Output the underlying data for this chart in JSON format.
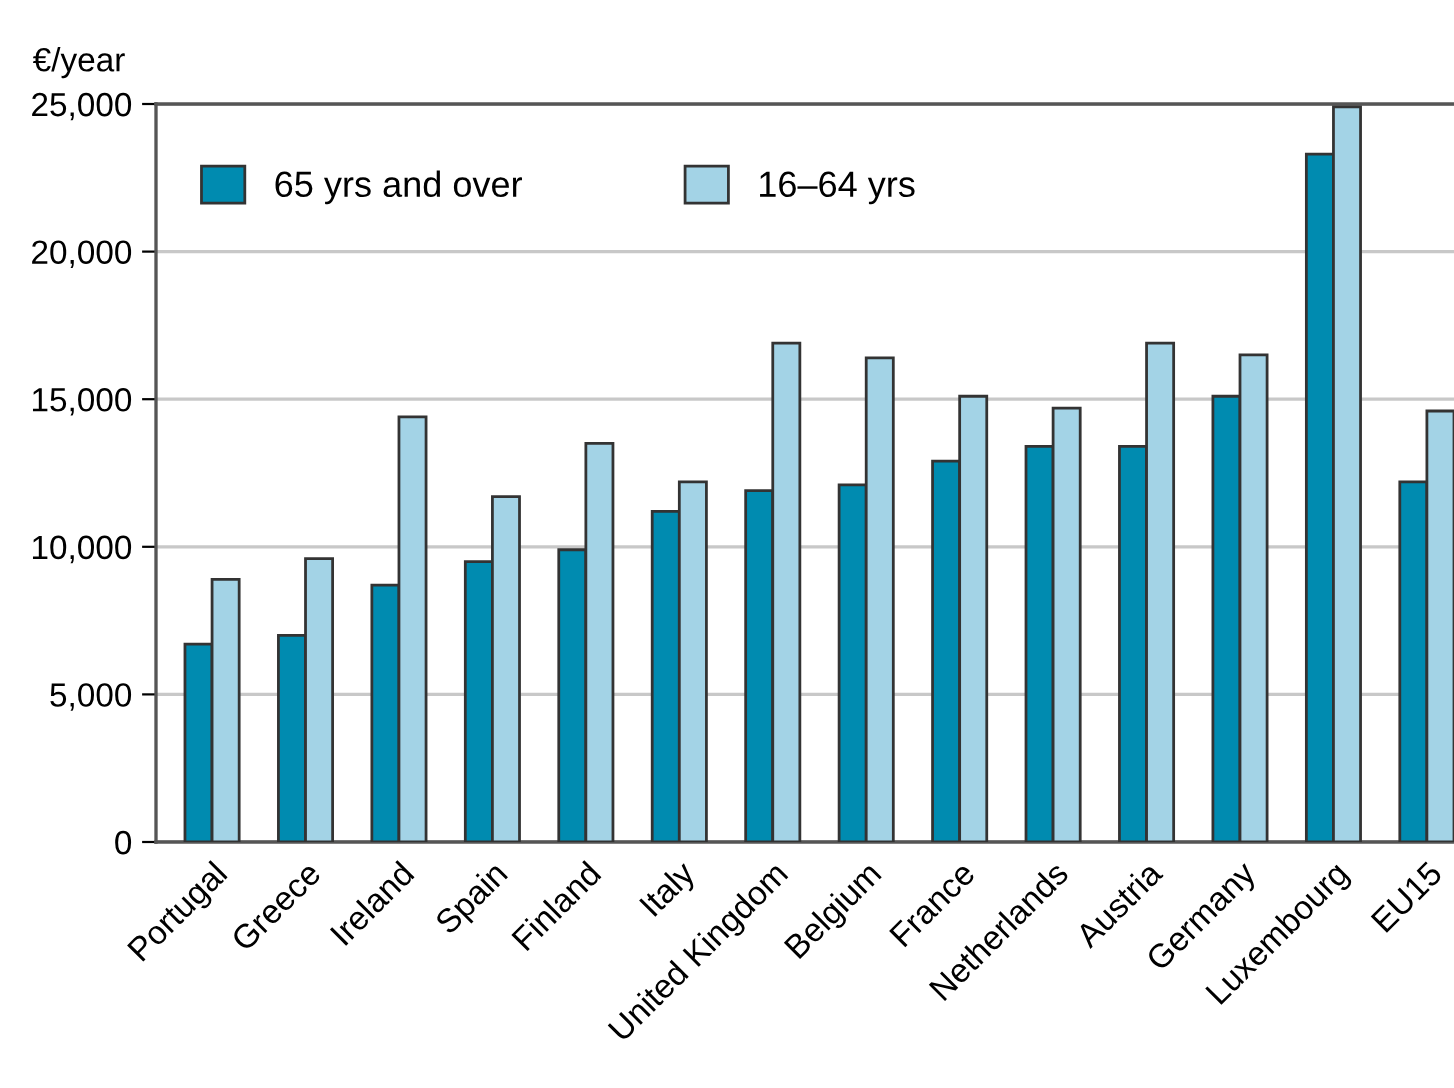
{
  "chart_data": {
    "type": "bar",
    "ylabel": "€/year",
    "categories": [
      "Portugal",
      "Greece",
      "Ireland",
      "Spain",
      "Finland",
      "Italy",
      "United Kingdom",
      "Belgium",
      "France",
      "Netherlands",
      "Austria",
      "Germany",
      "Luxembourg",
      "EU15"
    ],
    "series": [
      {
        "name": "65 yrs and over",
        "color": "#008bb0",
        "values": [
          6700,
          7000,
          8700,
          9500,
          9900,
          11200,
          11900,
          12100,
          12900,
          13400,
          13400,
          15100,
          23300,
          12200
        ]
      },
      {
        "name": "16–64 yrs",
        "color": "#a3d3e6",
        "values": [
          8900,
          9600,
          14400,
          11700,
          13500,
          12200,
          16900,
          16400,
          15100,
          14700,
          16900,
          16500,
          24900,
          14600
        ]
      }
    ],
    "ylim": [
      0,
      25000
    ],
    "yticks": [
      {
        "value": 0,
        "label": "0"
      },
      {
        "value": 5000,
        "label": "5,000"
      },
      {
        "value": 10000,
        "label": "10,000"
      },
      {
        "value": 15000,
        "label": "15,000"
      },
      {
        "value": 20000,
        "label": "20,000"
      },
      {
        "value": 25000,
        "label": "25,000"
      }
    ],
    "grid": "y",
    "legend": "top left"
  }
}
